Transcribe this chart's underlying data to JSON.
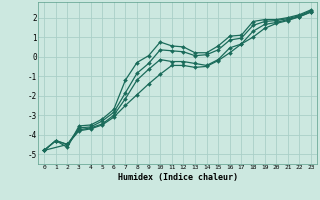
{
  "title": "",
  "xlabel": "Humidex (Indice chaleur)",
  "xlim": [
    -0.5,
    23.5
  ],
  "ylim": [
    -5.5,
    2.8
  ],
  "xticks": [
    0,
    1,
    2,
    3,
    4,
    5,
    6,
    7,
    8,
    9,
    10,
    11,
    12,
    13,
    14,
    15,
    16,
    17,
    18,
    19,
    20,
    21,
    22,
    23
  ],
  "yticks": [
    -5,
    -4,
    -3,
    -2,
    -1,
    0,
    1,
    2
  ],
  "bg_color": "#cce8e0",
  "grid_color": "#aacfc8",
  "line_color": "#1a6b5a",
  "line1_x": [
    0,
    1,
    2,
    3,
    4,
    5,
    6,
    7,
    8,
    9,
    10,
    11,
    12,
    13,
    14,
    15,
    16,
    17,
    18,
    19,
    20,
    21,
    22,
    23
  ],
  "line1_y": [
    -4.8,
    -4.3,
    -4.65,
    -3.55,
    -3.5,
    -3.2,
    -2.7,
    -1.2,
    -0.3,
    0.05,
    0.75,
    0.55,
    0.5,
    0.2,
    0.2,
    0.55,
    1.05,
    1.1,
    1.8,
    1.9,
    1.9,
    2.0,
    2.15,
    2.4
  ],
  "line2_x": [
    0,
    1,
    2,
    3,
    4,
    5,
    6,
    7,
    8,
    9,
    10,
    11,
    12,
    13,
    14,
    15,
    16,
    17,
    18,
    19,
    20,
    21,
    22,
    23
  ],
  "line2_y": [
    -4.8,
    -4.3,
    -4.5,
    -3.65,
    -3.6,
    -3.3,
    -2.85,
    -1.85,
    -0.85,
    -0.35,
    0.35,
    0.3,
    0.25,
    0.05,
    0.1,
    0.35,
    0.85,
    0.95,
    1.6,
    1.8,
    1.85,
    1.95,
    2.1,
    2.35
  ],
  "line3_x": [
    0,
    1,
    2,
    3,
    4,
    5,
    6,
    7,
    8,
    9,
    10,
    11,
    12,
    13,
    14,
    15,
    16,
    17,
    18,
    19,
    20,
    21,
    22,
    23
  ],
  "line3_y": [
    -4.8,
    -4.3,
    -4.5,
    -3.75,
    -3.65,
    -3.45,
    -3.0,
    -2.15,
    -1.2,
    -0.65,
    -0.15,
    -0.25,
    -0.25,
    -0.35,
    -0.45,
    -0.15,
    0.45,
    0.65,
    1.3,
    1.65,
    1.75,
    1.9,
    2.05,
    2.3
  ],
  "line4_x": [
    0,
    2,
    3,
    4,
    5,
    6,
    7,
    8,
    9,
    10,
    11,
    12,
    13,
    14,
    15,
    16,
    17,
    18,
    19,
    20,
    21,
    22,
    23
  ],
  "line4_y": [
    -4.8,
    -4.5,
    -3.8,
    -3.7,
    -3.5,
    -3.1,
    -2.5,
    -1.95,
    -1.4,
    -0.9,
    -0.45,
    -0.45,
    -0.55,
    -0.5,
    -0.2,
    0.2,
    0.65,
    1.0,
    1.45,
    1.7,
    1.85,
    2.05,
    2.28
  ],
  "marker": "D",
  "markersize": 2.0,
  "linewidth": 0.9
}
